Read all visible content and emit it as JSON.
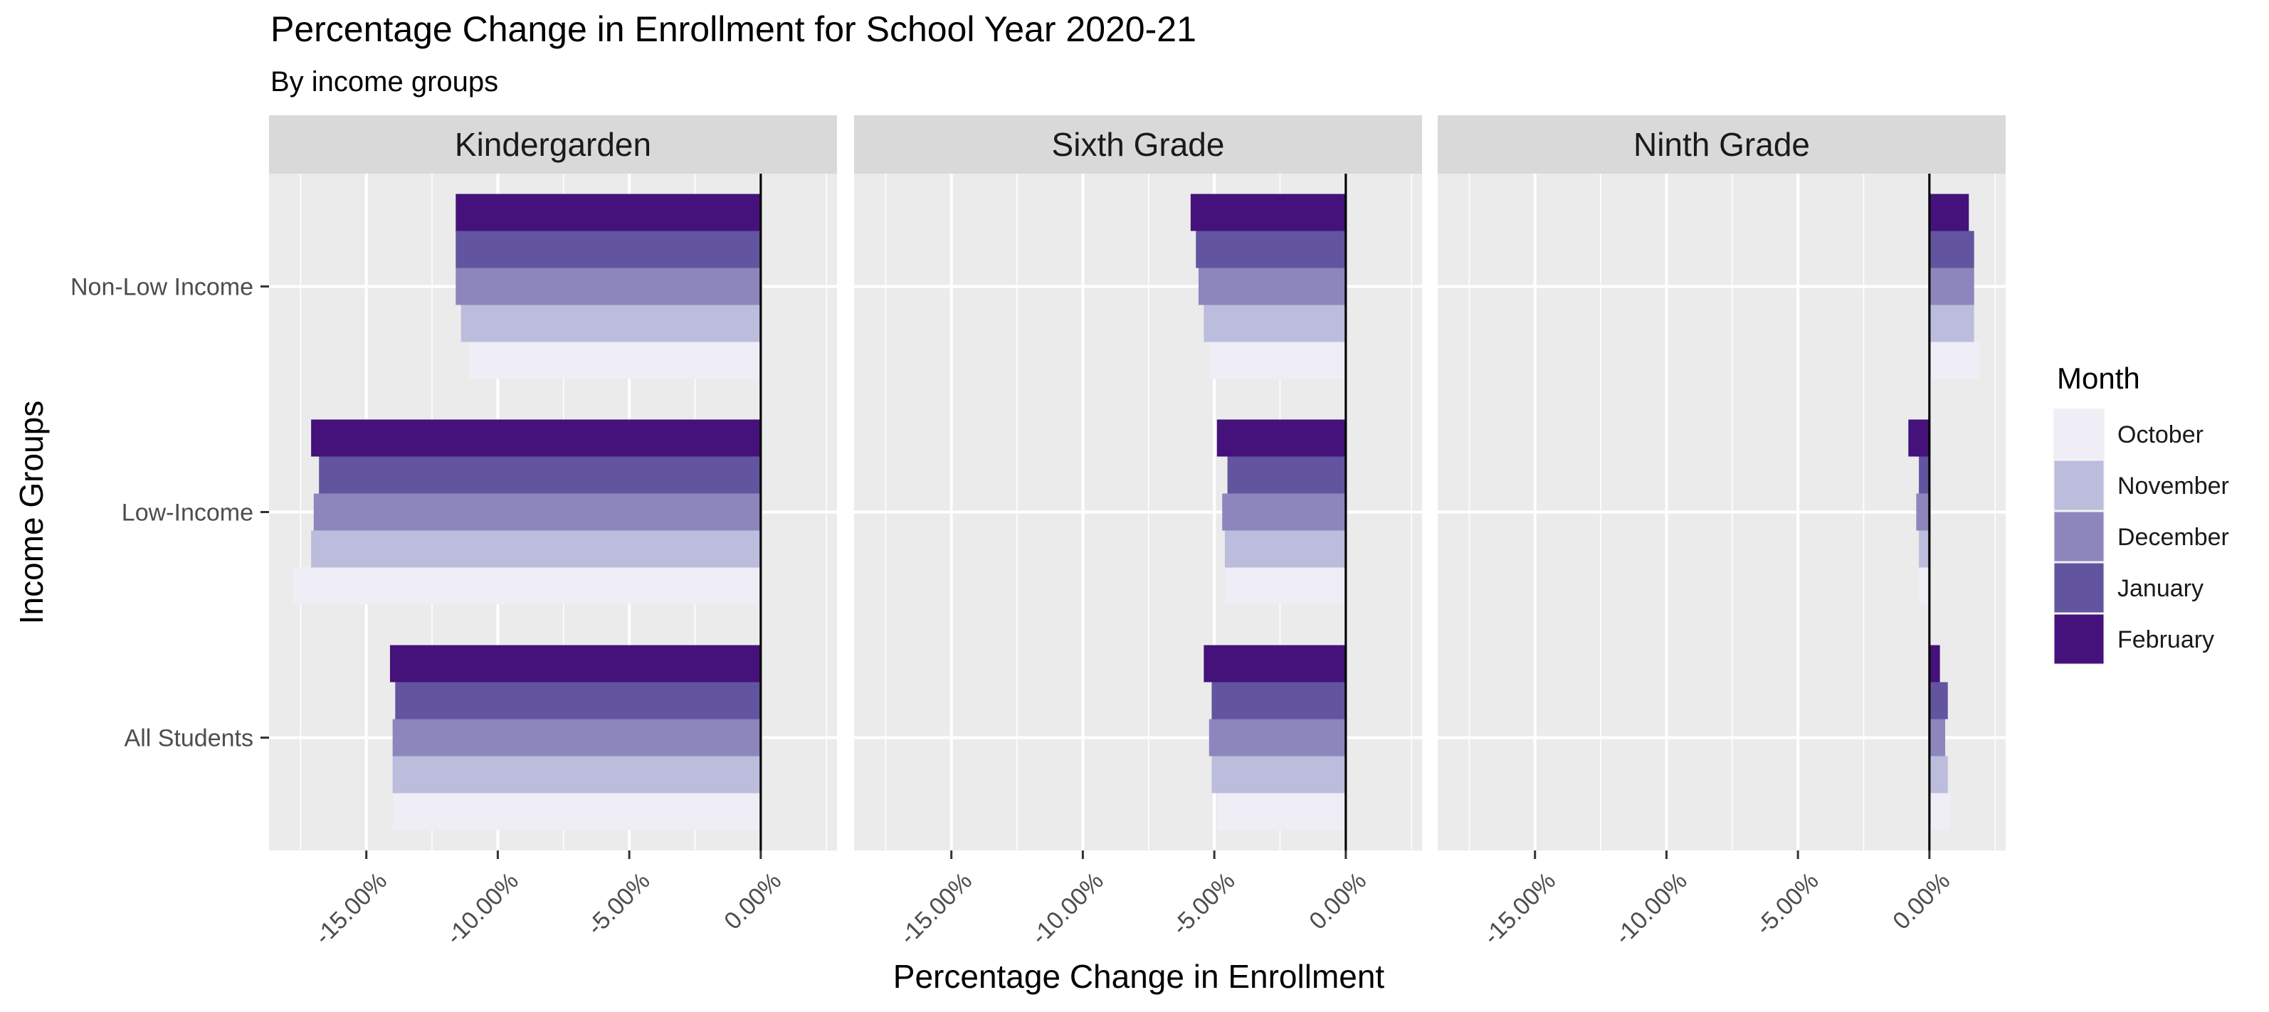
{
  "chart_data": {
    "type": "bar",
    "orientation": "horizontal",
    "title": "Percentage Change in Enrollment for School Year 2020-21",
    "subtitle": "By income groups",
    "xlabel": "Percentage Change in Enrollment",
    "ylabel": "Income Groups",
    "xlim": [
      -18.7,
      2.9
    ],
    "x_ticks": [
      -15,
      -10,
      -5,
      0
    ],
    "x_tick_labels": [
      "-15.00%",
      "-10.00%",
      "-5.00%",
      "0.00%"
    ],
    "categories": [
      "Non-Low Income",
      "Low-Income",
      "All Students"
    ],
    "legend": {
      "title": "Month",
      "position": "right"
    },
    "series_colors": {
      "October": "#efedf5",
      "November": "#bcbddc",
      "December": "#8c86bd",
      "January": "#62549e",
      "February": "#44127a"
    },
    "zero_line": true,
    "grid": true,
    "panels": [
      {
        "name": "Kindergarden",
        "series": [
          {
            "name": "October",
            "values": [
              -11.1,
              -17.8,
              -14.0
            ]
          },
          {
            "name": "November",
            "values": [
              -11.4,
              -17.1,
              -14.0
            ]
          },
          {
            "name": "December",
            "values": [
              -11.6,
              -17.0,
              -14.0
            ]
          },
          {
            "name": "January",
            "values": [
              -11.6,
              -16.8,
              -13.9
            ]
          },
          {
            "name": "February",
            "values": [
              -11.6,
              -17.1,
              -14.1
            ]
          }
        ]
      },
      {
        "name": "Sixth Grade",
        "series": [
          {
            "name": "October",
            "values": [
              -5.2,
              -4.6,
              -4.9
            ]
          },
          {
            "name": "November",
            "values": [
              -5.4,
              -4.6,
              -5.1
            ]
          },
          {
            "name": "December",
            "values": [
              -5.6,
              -4.7,
              -5.2
            ]
          },
          {
            "name": "January",
            "values": [
              -5.7,
              -4.5,
              -5.1
            ]
          },
          {
            "name": "February",
            "values": [
              -5.9,
              -4.9,
              -5.4
            ]
          }
        ]
      },
      {
        "name": "Ninth Grade",
        "series": [
          {
            "name": "October",
            "values": [
              1.9,
              -0.4,
              0.8
            ]
          },
          {
            "name": "November",
            "values": [
              1.7,
              -0.4,
              0.7
            ]
          },
          {
            "name": "December",
            "values": [
              1.7,
              -0.5,
              0.6
            ]
          },
          {
            "name": "January",
            "values": [
              1.7,
              -0.4,
              0.7
            ]
          },
          {
            "name": "February",
            "values": [
              1.5,
              -0.8,
              0.4
            ]
          }
        ]
      }
    ]
  }
}
